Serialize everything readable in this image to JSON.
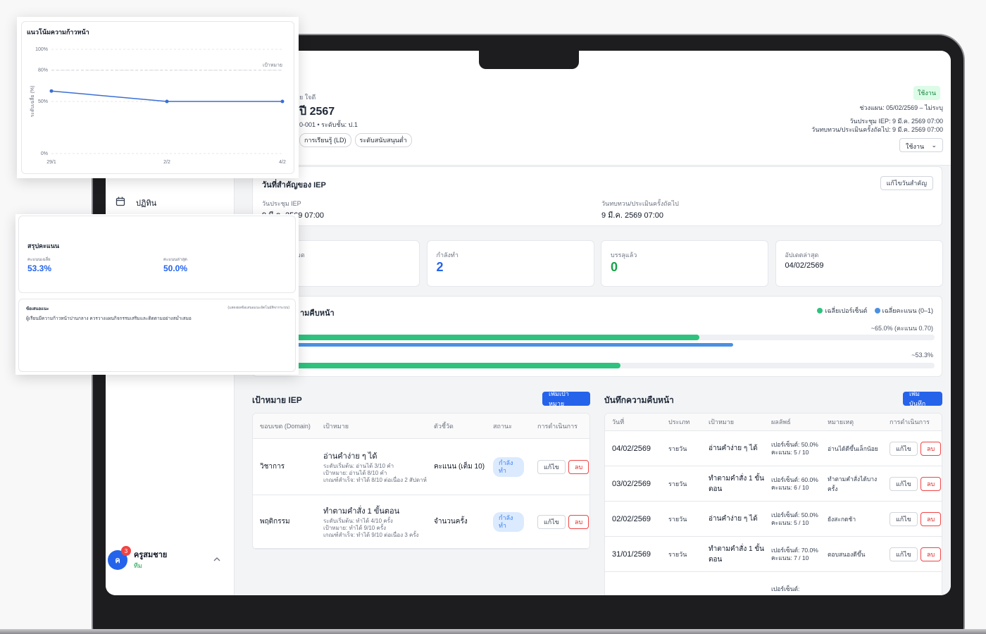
{
  "sidebar": {
    "menu": [
      "ปฏิทิน"
    ],
    "user": {
      "initial": "ค",
      "badge": "3",
      "name": "ครูสมชาย",
      "role": "ทีม"
    }
  },
  "header": {
    "student_name": "ย ใจดี",
    "plan_title": "ปี 2567",
    "meta": "0-001 • ระดับชั้น: ป.1",
    "tags": [
      "การเรียนรู้ (LD)",
      "ระดับสนับสนุนต่ำ"
    ],
    "status": "ใช้งาน",
    "plan_period": "ช่วงแผน: 05/02/2569 – ไม่ระบุ",
    "meeting": "วันประชุม IEP: 9 มี.ค. 2569 07:00",
    "review": "วันทบทวน/ประเมินครั้งถัดไป: 9 มี.ค. 2569 07:00",
    "status_select": "ใช้งาน"
  },
  "key_dates": {
    "title": "วันที่สำคัญของ IEP",
    "edit_button": "แก้ไขวันสำคัญ",
    "items": [
      {
        "label": "วันประชุม IEP",
        "value": "9 มี.ค. 2569 07:00"
      },
      {
        "label": "วันทบทวน/ประเมินครั้งถัดไป",
        "value": "9 มี.ค. 2569 07:00"
      }
    ]
  },
  "stats": [
    {
      "label": "มด"
    },
    {
      "label": "กำลังทำ",
      "value": "2"
    },
    {
      "label": "บรรลุแล้ว",
      "value": "0"
    },
    {
      "label": "อัปเดตล่าสุด",
      "value": "04/02/2569"
    }
  ],
  "progress": {
    "title": "ามคืบหน้า",
    "legend": [
      {
        "name": "เฉลี่ยเปอร์เซ็นต์",
        "color": "#2ec27e"
      },
      {
        "name": "เฉลี่ยคะแนน (0–1)",
        "color": "#4a90e2"
      }
    ],
    "rows": [
      {
        "label": "~65.0% (คะแนน 0.70)",
        "percent": 65.0,
        "score": 0.7
      },
      {
        "label": "~53.3%",
        "percent": 53.3
      }
    ]
  },
  "goals": {
    "title": "เป้าหมาย IEP",
    "add_button": "เพิ่มเป้าหมาย",
    "headers": [
      "ขอบเขต (Domain)",
      "เป้าหมาย",
      "ตัวชี้วัด",
      "สถานะ",
      "การดำเนินการ"
    ],
    "edit": "แก้ไข",
    "delete": "ลบ",
    "rows": [
      {
        "domain": "วิชาการ",
        "goal": "อ่านคำง่าย ๆ ได้",
        "details": [
          "ระดับเริ่มต้น: อ่านได้ 3/10 คำ",
          "เป้าหมาย: อ่านได้ 8/10 คำ",
          "เกณฑ์สำเร็จ: ทำได้ 8/10 ต่อเนื่อง 2 สัปดาห์"
        ],
        "measure": "คะแนน (เต็ม 10)",
        "status": "กำลังทำ"
      },
      {
        "domain": "พฤติกรรม",
        "goal": "ทำตามคำสั่ง 1 ขั้นตอน",
        "details": [
          "ระดับเริ่มต้น: ทำได้ 4/10 ครั้ง",
          "เป้าหมาย: ทำได้ 9/10 ครั้ง",
          "เกณฑ์สำเร็จ: ทำได้ 9/10 ต่อเนื่อง 3 ครั้ง"
        ],
        "measure": "จำนวนครั้ง",
        "status": "กำลังทำ"
      }
    ]
  },
  "log": {
    "title": "บันทึกความคืบหน้า",
    "add_button": "เพิ่มบันทึก",
    "headers": [
      "วันที่",
      "ประเภท",
      "เป้าหมาย",
      "ผลลัพธ์",
      "หมายเหตุ",
      "การดำเนินการ"
    ],
    "edit": "แก้ไข",
    "delete": "ลบ",
    "rows": [
      {
        "date": "04/02/2569",
        "type": "รายวัน",
        "goal": "อ่านคำง่าย ๆ ได้",
        "result": [
          "เปอร์เซ็นต์: 50.0%",
          "คะแนน: 5 / 10"
        ],
        "note": "อ่านได้ดีขึ้นเล็กน้อย"
      },
      {
        "date": "03/02/2569",
        "type": "รายวัน",
        "goal": "ทำตามคำสั่ง 1 ขั้นตอน",
        "result": [
          "เปอร์เซ็นต์: 60.0%",
          "คะแนน: 6 / 10"
        ],
        "note": "ทำตามคำสั่งได้บางครั้ง"
      },
      {
        "date": "02/02/2569",
        "type": "รายวัน",
        "goal": "อ่านคำง่าย ๆ ได้",
        "result": [
          "เปอร์เซ็นต์: 50.0%",
          "คะแนน: 5 / 10"
        ],
        "note": "ยังสะกดช้า"
      },
      {
        "date": "31/01/2569",
        "type": "รายวัน",
        "goal": "ทำตามคำสั่ง 1 ขั้นตอน",
        "result": [
          "เปอร์เซ็นต์: 70.0%",
          "คะแนน: 7 / 10"
        ],
        "note": "ตอบสนองดีขึ้น"
      },
      {
        "result": [
          "เปอร์เซ็นต์:"
        ]
      }
    ]
  },
  "trend": {
    "title": "แนวโน้มความก้าวหน้า",
    "y_label": "ระดับเฉลี่ย (%)",
    "target_label": "เป้าหมาย",
    "target": 80,
    "color": "#3b6fd4",
    "categories": [
      "29/1",
      "2/2",
      "4/2"
    ],
    "values": [
      60,
      50,
      50
    ],
    "ylim": [
      0,
      100
    ],
    "yticks": [
      {
        "value": 0,
        "label": "0%"
      },
      {
        "value": 50,
        "label": "50%"
      },
      {
        "value": 80,
        "label": "80%"
      },
      {
        "value": 100,
        "label": "100%"
      }
    ]
  },
  "score_summary": {
    "title": "สรุปคะแนน",
    "items": [
      {
        "label": "คะแนนเฉลี่ย",
        "value": "53.3%"
      },
      {
        "label": "คะแนนล่าสุด",
        "value": "50.0%"
      }
    ],
    "recommendation": {
      "title": "ข้อเสนอแนะ",
      "note": "(แสดงผลข้อเสนอแนะอัตโนมัติจากระบบ)",
      "text": "ผู้เรียนมีความก้าวหน้าปานกลาง ควรวางแผนกิจกรรมเสริมและติดตามอย่างสม่ำเสมอ"
    }
  }
}
